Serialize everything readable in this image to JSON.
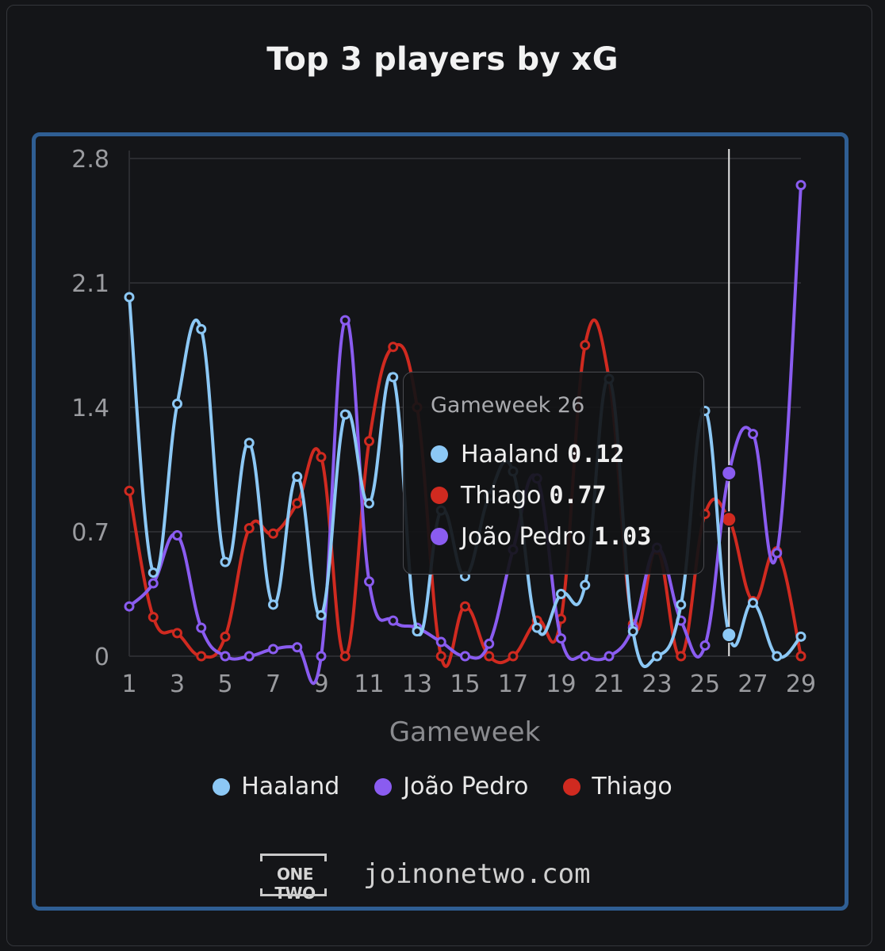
{
  "title": "Top 3 players by xG",
  "chart_data": {
    "type": "line",
    "xlabel": "Gameweek",
    "ylabel": "",
    "x": [
      1,
      2,
      3,
      4,
      5,
      6,
      7,
      8,
      9,
      10,
      11,
      12,
      13,
      14,
      15,
      16,
      17,
      18,
      19,
      20,
      21,
      22,
      23,
      24,
      25,
      26,
      27,
      28,
      29
    ],
    "xlim": [
      1,
      29
    ],
    "ylim": [
      0,
      2.8
    ],
    "x_ticks": [
      "1",
      "3",
      "5",
      "7",
      "9",
      "11",
      "13",
      "15",
      "17",
      "19",
      "21",
      "23",
      "25",
      "27",
      "29"
    ],
    "y_ticks": [
      "0",
      "0.7",
      "1.4",
      "2.1",
      "2.8"
    ],
    "grid": "horizontal",
    "legend_position": "bottom",
    "series": [
      {
        "name": "Haaland",
        "color": "#8cc8f5",
        "values": [
          2.02,
          0.47,
          1.42,
          1.84,
          0.53,
          1.2,
          0.29,
          1.01,
          0.23,
          1.36,
          0.86,
          1.57,
          0.14,
          0.82,
          0.45,
          0.9,
          1.04,
          0.16,
          0.35,
          0.4,
          1.56,
          0.14,
          0.0,
          0.29,
          1.38,
          0.12,
          0.3,
          0.0,
          0.11
        ]
      },
      {
        "name": "João Pedro",
        "color": "#8a5cf0",
        "values": [
          0.28,
          0.41,
          0.68,
          0.16,
          0.0,
          0.0,
          0.04,
          0.05,
          0.0,
          1.89,
          0.42,
          0.2,
          0.16,
          0.08,
          0.0,
          0.07,
          0.6,
          1.0,
          0.1,
          0.0,
          0.0,
          0.16,
          0.61,
          0.2,
          0.06,
          1.03,
          1.25,
          0.58,
          2.65
        ]
      },
      {
        "name": "Thiago",
        "color": "#d02a20",
        "values": [
          0.93,
          0.22,
          0.13,
          0.0,
          0.11,
          0.72,
          0.69,
          0.86,
          1.12,
          0.0,
          1.21,
          1.74,
          1.4,
          0.0,
          0.28,
          0.0,
          0.0,
          0.2,
          0.21,
          1.75,
          1.56,
          0.18,
          0.6,
          0.0,
          0.8,
          0.77,
          0.31,
          0.59,
          0.0
        ]
      }
    ],
    "highlight_x": 26
  },
  "tooltip": {
    "title": "Gameweek 26",
    "rows": [
      {
        "name": "Haaland",
        "value": "0.12",
        "color": "#8cc8f5"
      },
      {
        "name": "Thiago",
        "value": "0.77",
        "color": "#d02a20"
      },
      {
        "name": "João Pedro",
        "value": "1.03",
        "color": "#8a5cf0"
      }
    ]
  },
  "legend": [
    {
      "name": "Haaland",
      "color": "#8cc8f5"
    },
    {
      "name": "João Pedro",
      "color": "#8a5cf0"
    },
    {
      "name": "Thiago",
      "color": "#d02a20"
    }
  ],
  "footer": {
    "logo_text": "ONE TWO",
    "site": "joinonetwo.com"
  }
}
